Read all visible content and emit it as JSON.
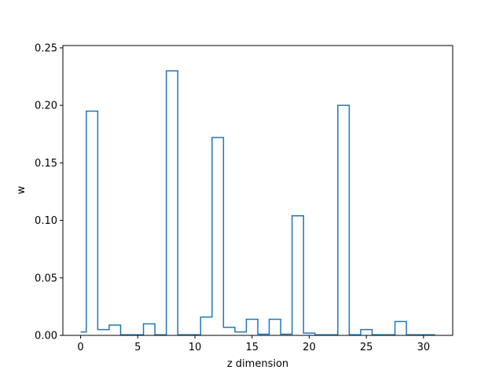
{
  "chart_data": {
    "type": "line",
    "style": "step-mid",
    "xlabel": "z dimension",
    "ylabel": "w",
    "xlim": [
      -1.55,
      32.55
    ],
    "ylim": [
      0,
      0.252
    ],
    "xticks": [
      0,
      5,
      10,
      15,
      20,
      25,
      30
    ],
    "xtick_labels": [
      "0",
      "5",
      "10",
      "15",
      "20",
      "25",
      "30"
    ],
    "yticks": [
      0.0,
      0.05,
      0.1,
      0.15,
      0.2,
      0.25
    ],
    "ytick_labels": [
      "0.00",
      "0.05",
      "0.10",
      "0.15",
      "0.20",
      "0.25"
    ],
    "grid": false,
    "color": "#1f77b4",
    "series": [
      {
        "x": [
          0,
          1,
          2,
          3,
          4,
          5,
          6,
          7,
          8,
          9,
          10,
          11,
          12,
          13,
          14,
          15,
          16,
          17,
          18,
          19,
          20,
          21,
          22,
          23,
          24,
          25,
          26,
          27,
          28,
          29,
          30,
          31
        ],
        "values": [
          0.003,
          0.195,
          0.005,
          0.009,
          0.0005,
          0.0005,
          0.01,
          0.0005,
          0.23,
          0.0005,
          0.0005,
          0.016,
          0.172,
          0.007,
          0.003,
          0.014,
          0.001,
          0.014,
          0.001,
          0.104,
          0.002,
          0.0005,
          0.0005,
          0.2,
          0.0005,
          0.005,
          0.0005,
          0.0005,
          0.012,
          0.0005,
          0.0005,
          0.0005
        ]
      }
    ]
  }
}
